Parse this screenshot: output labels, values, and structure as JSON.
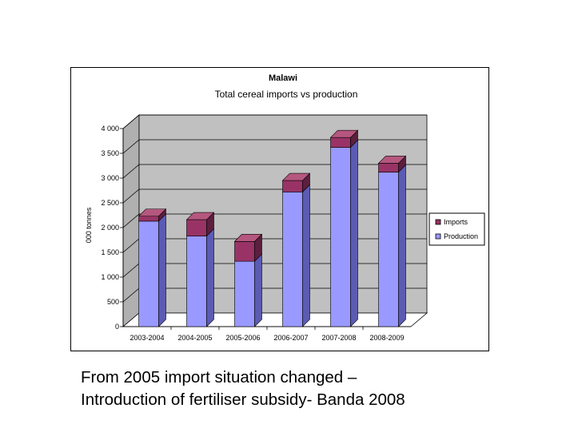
{
  "slide": {
    "caption_line1": "From 2005 import situation changed –",
    "caption_line2": "Introduction of fertiliser subsidy- Banda 2008"
  },
  "chart_data": {
    "type": "bar",
    "stacked": true,
    "three_d": true,
    "title": "Malawi",
    "subtitle": "Total cereal imports vs production",
    "xlabel": "",
    "ylabel": "000 tonnes",
    "ylim": [
      0,
      4000
    ],
    "yticks": [
      0,
      500,
      1000,
      1500,
      2000,
      2500,
      3000,
      3500,
      4000
    ],
    "ytick_labels": [
      "0",
      "500",
      "1 000",
      "1 500",
      "2 000",
      "2 500",
      "3 000",
      "3 500",
      "4 000"
    ],
    "categories": [
      "2003-2004",
      "2004-2005",
      "2005-2006",
      "2006-2007",
      "2007-2008",
      "2008-2009"
    ],
    "series": [
      {
        "name": "Production",
        "values": [
          2130,
          1830,
          1320,
          2720,
          3620,
          3120
        ],
        "color": "#9999ff",
        "side_color": "#5b5bb4",
        "top_color": "#c4c4ff"
      },
      {
        "name": "Imports",
        "values": [
          100,
          330,
          400,
          230,
          200,
          180
        ],
        "color": "#993366",
        "side_color": "#5c1f3d",
        "top_color": "#b5577f"
      }
    ],
    "legend": {
      "position": "right",
      "items": [
        "Imports",
        "Production"
      ]
    },
    "grid": true,
    "plot_background": "#c0c0c0"
  }
}
